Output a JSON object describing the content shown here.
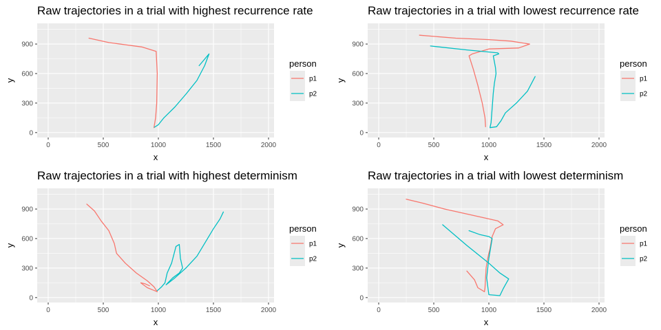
{
  "chart_data": [
    {
      "type": "line",
      "title": "Raw trajectories in a trial with highest recurrence rate",
      "xlabel": "x",
      "ylabel": "y",
      "xlim": [
        -100,
        2050
      ],
      "ylim": [
        -50,
        1110
      ],
      "xticks": [
        0,
        500,
        1000,
        1500,
        2000
      ],
      "yticks": [
        0,
        300,
        600,
        900
      ],
      "grid": true,
      "legend": {
        "title": "person",
        "position": "right"
      },
      "series": [
        {
          "name": "p1",
          "color": "#F8766D",
          "points": [
            [
              370,
              960
            ],
            [
              550,
              915
            ],
            [
              850,
              870
            ],
            [
              980,
              825
            ],
            [
              990,
              600
            ],
            [
              985,
              300
            ],
            [
              975,
              150
            ],
            [
              960,
              50
            ]
          ]
        },
        {
          "name": "p2",
          "color": "#00BFC4",
          "points": [
            [
              965,
              55
            ],
            [
              1000,
              80
            ],
            [
              1050,
              150
            ],
            [
              1150,
              260
            ],
            [
              1250,
              390
            ],
            [
              1350,
              530
            ],
            [
              1420,
              680
            ],
            [
              1460,
              800
            ],
            [
              1370,
              680
            ]
          ]
        }
      ]
    },
    {
      "type": "line",
      "title": "Raw trajectories in a trial with lowest recurrence rate",
      "xlabel": "x",
      "ylabel": "y",
      "xlim": [
        -100,
        2050
      ],
      "ylim": [
        -50,
        1110
      ],
      "xticks": [
        0,
        500,
        1000,
        1500,
        2000
      ],
      "yticks": [
        0,
        300,
        600,
        900
      ],
      "grid": true,
      "legend": {
        "title": "person",
        "position": "right"
      },
      "series": [
        {
          "name": "p1",
          "color": "#F8766D",
          "points": [
            [
              370,
              990
            ],
            [
              700,
              960
            ],
            [
              1000,
              945
            ],
            [
              1200,
              930
            ],
            [
              1370,
              900
            ],
            [
              1270,
              860
            ],
            [
              1000,
              850
            ],
            [
              850,
              800
            ],
            [
              820,
              780
            ],
            [
              860,
              640
            ],
            [
              900,
              480
            ],
            [
              940,
              300
            ],
            [
              965,
              150
            ],
            [
              970,
              60
            ]
          ]
        },
        {
          "name": "p2",
          "color": "#00BFC4",
          "points": [
            [
              470,
              880
            ],
            [
              800,
              840
            ],
            [
              1080,
              810
            ],
            [
              1090,
              800
            ],
            [
              1040,
              780
            ],
            [
              1050,
              720
            ],
            [
              1060,
              660
            ],
            [
              1065,
              600
            ],
            [
              1050,
              500
            ],
            [
              1040,
              400
            ],
            [
              1030,
              250
            ],
            [
              1020,
              100
            ],
            [
              1010,
              50
            ],
            [
              1070,
              60
            ],
            [
              1110,
              120
            ],
            [
              1150,
              200
            ],
            [
              1250,
              300
            ],
            [
              1350,
              420
            ],
            [
              1420,
              570
            ]
          ]
        }
      ]
    },
    {
      "type": "line",
      "title": "Raw trajectories in a trial with highest determinism",
      "xlabel": "x",
      "ylabel": "y",
      "xlim": [
        -100,
        2050
      ],
      "ylim": [
        -50,
        1110
      ],
      "xticks": [
        0,
        500,
        1000,
        1500,
        2000
      ],
      "yticks": [
        0,
        300,
        600,
        900
      ],
      "grid": true,
      "legend": {
        "title": "person",
        "position": "right"
      },
      "series": [
        {
          "name": "p1",
          "color": "#F8766D",
          "points": [
            [
              350,
              950
            ],
            [
              420,
              880
            ],
            [
              480,
              780
            ],
            [
              550,
              680
            ],
            [
              600,
              550
            ],
            [
              620,
              450
            ],
            [
              700,
              350
            ],
            [
              800,
              250
            ],
            [
              900,
              170
            ],
            [
              960,
              110
            ],
            [
              990,
              60
            ],
            [
              900,
              100
            ],
            [
              840,
              150
            ],
            [
              880,
              140
            ],
            [
              920,
              120
            ]
          ]
        },
        {
          "name": "p2",
          "color": "#00BFC4",
          "points": [
            [
              990,
              70
            ],
            [
              1030,
              110
            ],
            [
              1060,
              150
            ],
            [
              1080,
              250
            ],
            [
              1120,
              350
            ],
            [
              1160,
              520
            ],
            [
              1190,
              540
            ],
            [
              1200,
              400
            ],
            [
              1220,
              300
            ],
            [
              1190,
              250
            ],
            [
              1130,
              200
            ],
            [
              1070,
              130
            ],
            [
              1150,
              200
            ],
            [
              1250,
              300
            ],
            [
              1350,
              420
            ],
            [
              1420,
              550
            ],
            [
              1500,
              700
            ],
            [
              1560,
              800
            ],
            [
              1590,
              870
            ]
          ]
        }
      ]
    },
    {
      "type": "line",
      "title": "Raw trajectories in a trial with lowest determinism",
      "xlabel": "x",
      "ylabel": "y",
      "xlim": [
        -100,
        2050
      ],
      "ylim": [
        -50,
        1110
      ],
      "xticks": [
        0,
        500,
        1000,
        1500,
        2000
      ],
      "yticks": [
        0,
        300,
        600,
        900
      ],
      "grid": true,
      "legend": {
        "title": "person",
        "position": "right"
      },
      "series": [
        {
          "name": "p1",
          "color": "#F8766D",
          "points": [
            [
              250,
              1000
            ],
            [
              400,
              960
            ],
            [
              600,
              900
            ],
            [
              800,
              850
            ],
            [
              1000,
              800
            ],
            [
              1080,
              780
            ],
            [
              1130,
              740
            ],
            [
              1060,
              700
            ],
            [
              1030,
              620
            ],
            [
              1010,
              500
            ],
            [
              990,
              400
            ],
            [
              975,
              300
            ],
            [
              965,
              100
            ],
            [
              960,
              60
            ],
            [
              900,
              100
            ],
            [
              870,
              180
            ],
            [
              800,
              270
            ]
          ]
        },
        {
          "name": "p2",
          "color": "#00BFC4",
          "points": [
            [
              580,
              740
            ],
            [
              800,
              530
            ],
            [
              1000,
              350
            ],
            [
              1100,
              250
            ],
            [
              1180,
              190
            ],
            [
              1150,
              130
            ],
            [
              1130,
              90
            ],
            [
              1100,
              20
            ],
            [
              1000,
              30
            ],
            [
              980,
              200
            ],
            [
              1000,
              400
            ],
            [
              1030,
              600
            ],
            [
              1000,
              620
            ],
            [
              920,
              640
            ],
            [
              820,
              680
            ]
          ]
        }
      ]
    }
  ]
}
